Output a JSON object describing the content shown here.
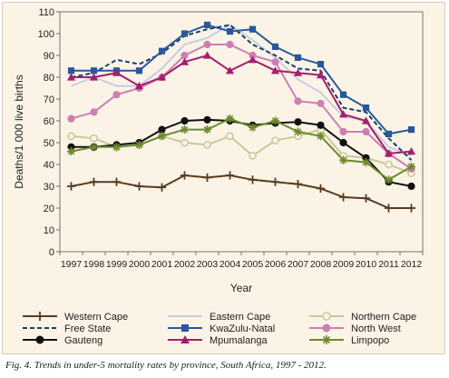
{
  "caption": "Fig. 4. Trends in under-5 mortality rates by province, South Africa, 1997 - 2012.",
  "chart_data": {
    "type": "line",
    "title": "",
    "xlabel": "Year",
    "ylabel": "Deaths/1 000 live births",
    "x": [
      "1997",
      "1998",
      "1999",
      "2000",
      "2001",
      "2002",
      "2003",
      "2004",
      "2005",
      "2006",
      "2007",
      "2008",
      "2009",
      "2010",
      "2011",
      "2012"
    ],
    "ylim": [
      0,
      110
    ],
    "yticks": [
      0,
      10,
      20,
      30,
      40,
      50,
      60,
      70,
      80,
      90,
      100,
      110
    ],
    "grid": false,
    "legend_position": "bottom",
    "series": [
      {
        "name": "Western Cape",
        "color": "#5a3a1e",
        "marker": "cross",
        "dash": "",
        "values": [
          30,
          32,
          32,
          30,
          29.5,
          35,
          34,
          35,
          33,
          32,
          31,
          29,
          25,
          24.5,
          20,
          20
        ]
      },
      {
        "name": "Eastern Cape",
        "color": "#c8cedf",
        "marker": "none",
        "dash": "",
        "values": [
          76,
          80,
          76,
          76,
          84,
          95,
          98,
          104,
          97,
          89,
          79,
          73,
          62,
          60,
          48,
          44
        ]
      },
      {
        "name": "Northern Cape",
        "color": "#c9c89d",
        "marker": "circle-open",
        "dash": "",
        "values": [
          53,
          52,
          48,
          49,
          53,
          50,
          49,
          53,
          44,
          51,
          53,
          56,
          44,
          43,
          40,
          36
        ]
      },
      {
        "name": "Free State",
        "color": "#1b3f6b",
        "marker": "none",
        "dash": "5,3",
        "values": [
          80,
          82,
          88,
          86,
          91,
          99,
          102,
          104,
          95,
          90,
          84,
          83,
          66,
          64,
          52,
          42
        ]
      },
      {
        "name": "KwaZulu-Natal",
        "color": "#28589a",
        "marker": "square",
        "dash": "",
        "values": [
          83,
          83,
          83,
          83,
          92,
          100,
          104,
          101,
          102,
          94,
          89,
          86,
          72,
          66,
          54,
          56
        ]
      },
      {
        "name": "North West",
        "color": "#cc7fb2",
        "marker": "circle",
        "dash": "",
        "values": [
          61,
          64,
          72,
          75,
          80,
          90,
          95,
          95,
          90,
          87,
          69,
          68,
          55,
          55,
          45,
          38
        ]
      },
      {
        "name": "Gauteng",
        "color": "#111111",
        "marker": "circle",
        "dash": "",
        "values": [
          48,
          48,
          49,
          50,
          56,
          60,
          60.5,
          60,
          58,
          59,
          59.5,
          58,
          50,
          43,
          32,
          30
        ]
      },
      {
        "name": "Mpumalanga",
        "color": "#a31f6e",
        "marker": "triangle",
        "dash": "",
        "values": [
          80,
          80,
          82,
          76,
          80,
          87,
          90,
          83,
          88,
          83,
          82,
          81,
          63,
          60,
          45,
          46
        ]
      },
      {
        "name": "Limpopo",
        "color": "#6e8a2e",
        "marker": "asterisk",
        "dash": "",
        "values": [
          46,
          48,
          48,
          49,
          53,
          56,
          56,
          61,
          57,
          60,
          55,
          53,
          42,
          41,
          33,
          39
        ]
      }
    ]
  }
}
